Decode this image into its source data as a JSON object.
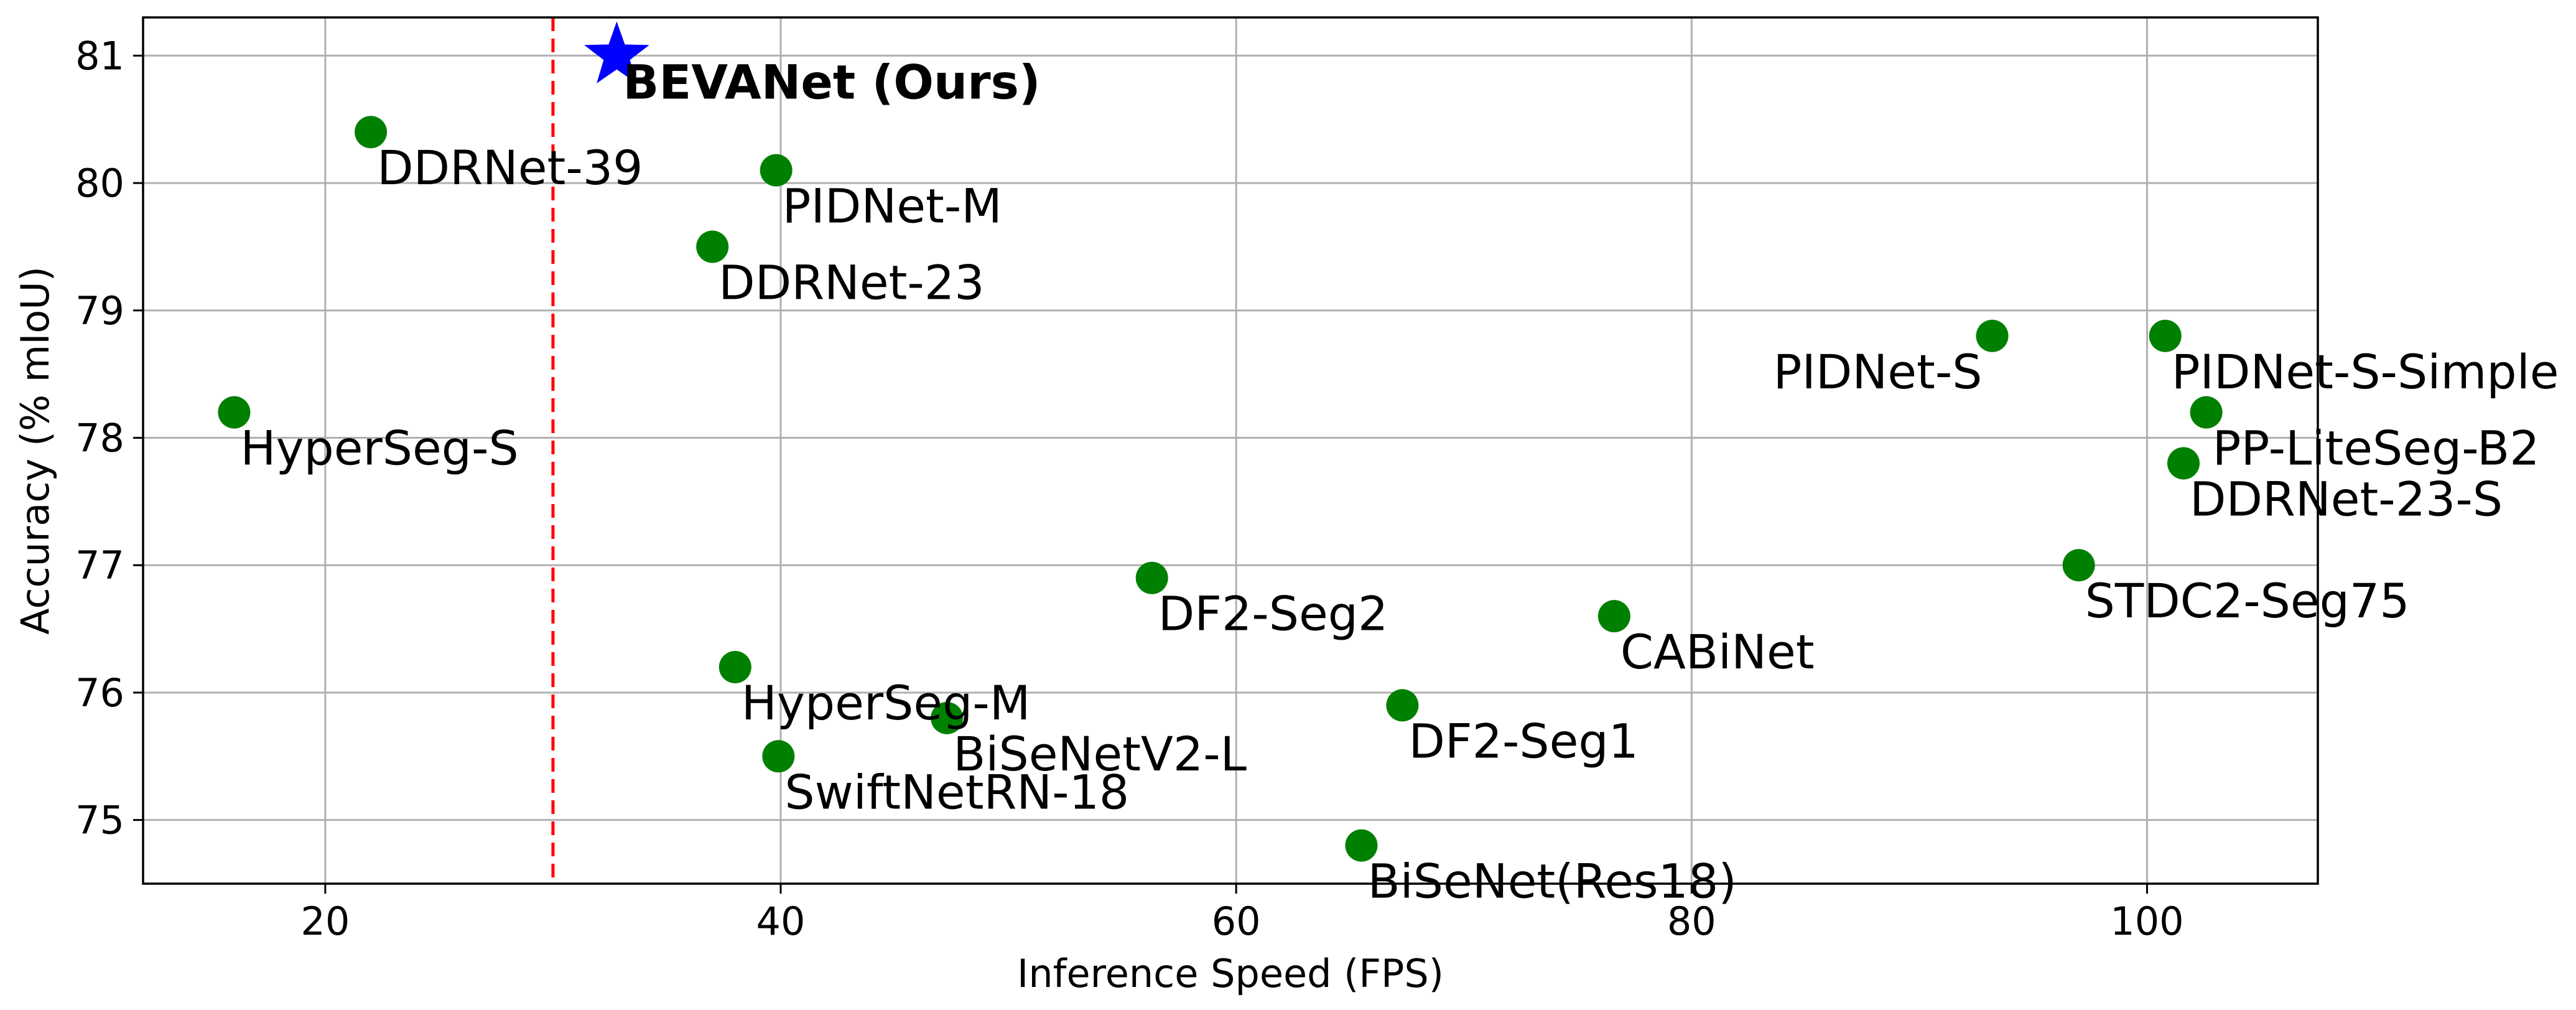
{
  "chart_data": {
    "type": "scatter",
    "title": "",
    "xlabel": "Inference Speed (FPS)",
    "ylabel": "Accuracy (% mIoU)",
    "xlim": [
      12,
      107.5
    ],
    "ylim": [
      74.5,
      81.3
    ],
    "xticks": [
      20,
      40,
      60,
      80,
      100
    ],
    "yticks": [
      75,
      76,
      77,
      78,
      79,
      80,
      81
    ],
    "grid": true,
    "reference_line": {
      "axis": "x",
      "value": 30,
      "style": "dashed",
      "color": "#ff0000"
    },
    "colors": {
      "baseline": "#008000",
      "highlight": "#0000ff"
    },
    "points": [
      {
        "name": "BEVANet (Ours)",
        "x": 32.8,
        "y": 81.0,
        "marker": "star",
        "highlight": true,
        "label_pos": "below-right"
      },
      {
        "name": "DDRNet-39",
        "x": 22.0,
        "y": 80.4,
        "marker": "circle",
        "label_pos": "below-right"
      },
      {
        "name": "PIDNet-M",
        "x": 39.8,
        "y": 80.1,
        "marker": "circle",
        "label_pos": "below-right"
      },
      {
        "name": "DDRNet-23",
        "x": 37.0,
        "y": 79.5,
        "marker": "circle",
        "label_pos": "below-right"
      },
      {
        "name": "HyperSeg-S",
        "x": 16.0,
        "y": 78.2,
        "marker": "circle",
        "label_pos": "below-right"
      },
      {
        "name": "PIDNet-S",
        "x": 93.2,
        "y": 78.8,
        "marker": "circle",
        "label_pos": "below-left"
      },
      {
        "name": "PIDNet-S-Simple",
        "x": 100.8,
        "y": 78.8,
        "marker": "circle",
        "label_pos": "below-right"
      },
      {
        "name": "PP-LiteSeg-B2",
        "x": 102.6,
        "y": 78.2,
        "marker": "circle",
        "label_pos": "below-right"
      },
      {
        "name": "DDRNet-23-S",
        "x": 101.6,
        "y": 77.8,
        "marker": "circle",
        "label_pos": "below-right"
      },
      {
        "name": "STDC2-Seg75",
        "x": 97.0,
        "y": 77.0,
        "marker": "circle",
        "label_pos": "below-right"
      },
      {
        "name": "DF2-Seg2",
        "x": 56.3,
        "y": 76.9,
        "marker": "circle",
        "label_pos": "below-right"
      },
      {
        "name": "CABiNet",
        "x": 76.6,
        "y": 76.6,
        "marker": "circle",
        "label_pos": "below-right"
      },
      {
        "name": "HyperSeg-M",
        "x": 38.0,
        "y": 76.2,
        "marker": "circle",
        "label_pos": "below-right"
      },
      {
        "name": "BiSeNetV2-L",
        "x": 47.3,
        "y": 75.8,
        "marker": "circle",
        "label_pos": "below-right"
      },
      {
        "name": "DF2-Seg1",
        "x": 67.3,
        "y": 75.9,
        "marker": "circle",
        "label_pos": "below-right"
      },
      {
        "name": "SwiftNetRN-18",
        "x": 39.9,
        "y": 75.5,
        "marker": "circle",
        "label_pos": "below-right"
      },
      {
        "name": "BiSeNet(Res18)",
        "x": 65.5,
        "y": 74.8,
        "marker": "circle",
        "label_pos": "below-right"
      }
    ]
  }
}
